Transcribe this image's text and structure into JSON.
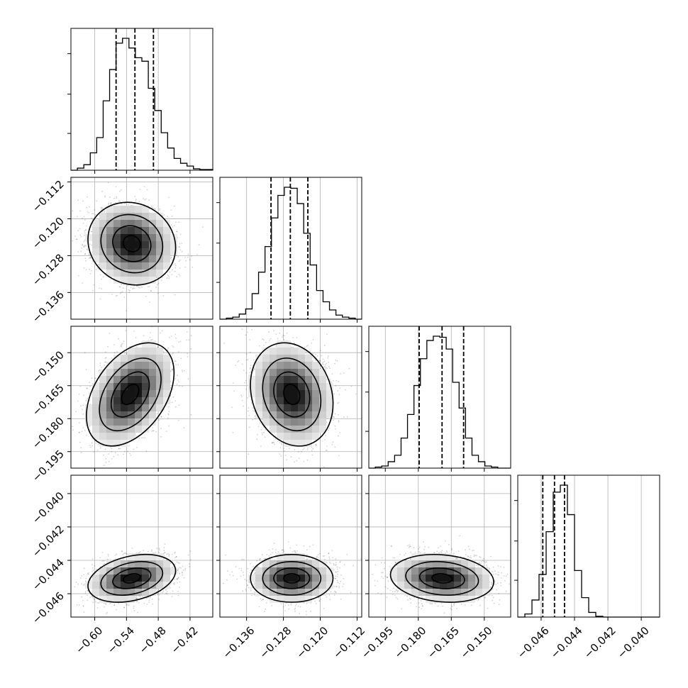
{
  "chart_data": {
    "type": "corner",
    "grid": true,
    "parameters": [
      {
        "ticks": [
          -0.6,
          -0.54,
          -0.48,
          -0.42
        ],
        "tick_labels": [
          "−0.60",
          "−0.54",
          "−0.48",
          "−0.42"
        ],
        "range": [
          -0.645,
          -0.377
        ]
      },
      {
        "ticks": [
          -0.136,
          -0.128,
          -0.12,
          -0.112
        ],
        "tick_labels": [
          "−0.136",
          "−0.128",
          "−0.120",
          "−0.112"
        ],
        "range": [
          -0.1418,
          -0.111
        ]
      },
      {
        "ticks": [
          -0.195,
          -0.18,
          -0.165,
          -0.15
        ],
        "tick_labels": [
          "−0.195",
          "−0.180",
          "−0.165",
          "−0.150"
        ],
        "range": [
          -0.2025,
          -0.138
        ]
      },
      {
        "ticks": [
          -0.046,
          -0.044,
          -0.042,
          -0.04
        ],
        "tick_labels": [
          "−0.046",
          "−0.044",
          "−0.042",
          "−0.040"
        ],
        "range": [
          -0.0474,
          -0.0389
        ]
      }
    ],
    "marginals": [
      {
        "quantiles": [
          -0.5597,
          -0.5241,
          -0.4891
        ],
        "counts": [
          0,
          3,
          8,
          25,
          47,
          100,
          145,
          183,
          190,
          176,
          162,
          157,
          118,
          86,
          54,
          32,
          17,
          10,
          6,
          2,
          1,
          1
        ]
      },
      {
        "quantiles": [
          -0.1307,
          -0.1265,
          -0.1227
        ],
        "counts": [
          0,
          1,
          2,
          5,
          10,
          25,
          46,
          71,
          99,
          121,
          129,
          128,
          113,
          84,
          53,
          28,
          17,
          9,
          4,
          2,
          1,
          0
        ]
      },
      {
        "quantiles": [
          -0.1796,
          -0.1692,
          -0.1594
        ],
        "counts": [
          0,
          1,
          2,
          6,
          12,
          28,
          50,
          77,
          102,
          119,
          123,
          122,
          111,
          80,
          56,
          28,
          12,
          6,
          2,
          1,
          0,
          0
        ]
      },
      {
        "quantiles": [
          -0.0459,
          -0.0452,
          -0.0446
        ],
        "counts": [
          0,
          4,
          22,
          55,
          110,
          161,
          170,
          132,
          60,
          25,
          6,
          1,
          0,
          0,
          0,
          0,
          0,
          0,
          0,
          0
        ]
      }
    ],
    "pairs": [
      {
        "x": 0,
        "y": 1,
        "center": [
          -0.53,
          -0.1254
        ],
        "sd": [
          0.036,
          0.0039
        ],
        "corr": -0.1
      },
      {
        "x": 0,
        "y": 2,
        "center": [
          -0.533,
          -0.169
        ],
        "sd": [
          0.036,
          0.0102
        ],
        "corr": 0.42
      },
      {
        "x": 1,
        "y": 2,
        "center": [
          -0.1262,
          -0.169
        ],
        "sd": [
          0.0039,
          0.0102
        ],
        "corr": -0.18
      },
      {
        "x": 0,
        "y": 3,
        "center": [
          -0.53,
          -0.04508
        ],
        "sd": [
          0.036,
          0.00062
        ],
        "corr": 0.32
      },
      {
        "x": 1,
        "y": 3,
        "center": [
          -0.1262,
          -0.04508
        ],
        "sd": [
          0.0039,
          0.00062
        ],
        "corr": 0.0
      },
      {
        "x": 2,
        "y": 3,
        "center": [
          -0.1692,
          -0.04508
        ],
        "sd": [
          0.0102,
          0.00062
        ],
        "corr": -0.15
      }
    ]
  }
}
